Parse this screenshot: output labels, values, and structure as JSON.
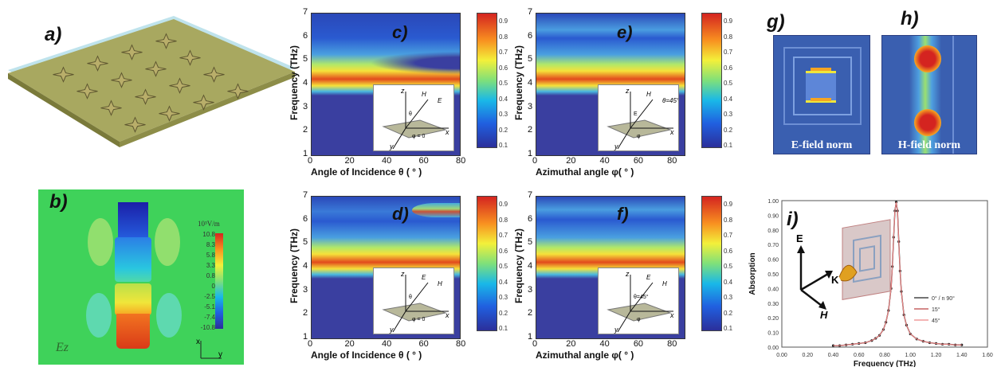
{
  "panels": {
    "a": {
      "label": "a)"
    },
    "b": {
      "label": "b)",
      "unit": "10³V/m",
      "scale": [
        "10.8",
        "8.3",
        "5.8",
        "3.3",
        "0.8",
        "0",
        "-2.5",
        "-5.1",
        "-7.4",
        "-10.8"
      ],
      "field_label": "Ez",
      "axes": [
        "x",
        "y"
      ]
    },
    "c": {
      "label": "c)",
      "xlabel": "Angle of Incidence θ ( ° )",
      "ylabel": "Frequency (THz)",
      "xticks": [
        "0",
        "20",
        "40",
        "60",
        "80"
      ],
      "yticks": [
        "1",
        "2",
        "3",
        "4",
        "5",
        "6",
        "7"
      ],
      "inset_labels": [
        "z",
        "H",
        "E",
        "θ",
        "φ = 0",
        "x",
        "y"
      ]
    },
    "d": {
      "label": "d)",
      "xlabel": "Angle of Incidence θ ( ° )",
      "ylabel": "Frequency (THz)",
      "xticks": [
        "0",
        "20",
        "40",
        "60",
        "80"
      ],
      "yticks": [
        "1",
        "2",
        "3",
        "4",
        "5",
        "6",
        "7"
      ],
      "inset_labels": [
        "z",
        "E",
        "H",
        "θ",
        "φ = 0",
        "x",
        "y"
      ]
    },
    "e": {
      "label": "e)",
      "xlabel": "Azimuthal angle φ( ° )",
      "ylabel": "Frequency (THz)",
      "xticks": [
        "0",
        "20",
        "40",
        "60",
        "80"
      ],
      "yticks": [
        "1",
        "2",
        "3",
        "4",
        "5",
        "6",
        "7"
      ],
      "inset_labels": [
        "z",
        "H",
        "θ=45°",
        "E",
        "φ",
        "x",
        "y"
      ]
    },
    "f": {
      "label": "f)",
      "xlabel": "Azimuthal angle φ( ° )",
      "ylabel": "Frequency (THz)",
      "xticks": [
        "0",
        "20",
        "40",
        "60",
        "80"
      ],
      "yticks": [
        "1",
        "2",
        "3",
        "4",
        "5",
        "6",
        "7"
      ],
      "inset_labels": [
        "z",
        "E",
        "H",
        "θ=45°",
        "φ",
        "x",
        "y"
      ]
    },
    "g": {
      "label": "g)",
      "caption": "E-field norm"
    },
    "h": {
      "label": "h)",
      "caption": "H-field norm"
    },
    "i": {
      "label": "i)",
      "xlabel": "Frequency (THz)",
      "ylabel": "Absorption",
      "legend": [
        "0° / n 90°",
        "15°",
        "45°"
      ],
      "vectors": [
        "E",
        "K",
        "H"
      ]
    }
  },
  "colorbar_ticks": [
    "0.9",
    "0.8",
    "0.7",
    "0.6",
    "0.5",
    "0.4",
    "0.3",
    "0.2",
    "0.1"
  ],
  "chart_data": [
    {
      "type": "line",
      "xlabel": "Frequency (THz)",
      "ylabel": "Absorption",
      "xlim": [
        0.0,
        1.6
      ],
      "ylim": [
        0.0,
        1.0
      ],
      "xticks": [
        "0.00",
        "0.20",
        "0.40",
        "0.60",
        "0.80",
        "1.00",
        "1.20",
        "1.40",
        "1.60"
      ],
      "yticks": [
        "0.00",
        "0.10",
        "0.20",
        "0.30",
        "0.40",
        "0.50",
        "0.60",
        "0.70",
        "0.80",
        "0.90",
        "1.00"
      ],
      "x": [
        0.4,
        0.45,
        0.5,
        0.55,
        0.6,
        0.65,
        0.7,
        0.73,
        0.76,
        0.79,
        0.81,
        0.83,
        0.85,
        0.86,
        0.87,
        0.88,
        0.89,
        0.9,
        0.91,
        0.92,
        0.93,
        0.95,
        0.97,
        1.0,
        1.05,
        1.1,
        1.15,
        1.2,
        1.25,
        1.3,
        1.35,
        1.4
      ],
      "series": [
        {
          "name": "0° / n 90°",
          "values": [
            0.01,
            0.01,
            0.015,
            0.02,
            0.025,
            0.03,
            0.045,
            0.06,
            0.08,
            0.12,
            0.17,
            0.25,
            0.4,
            0.55,
            0.75,
            0.93,
            0.99,
            0.93,
            0.72,
            0.52,
            0.38,
            0.22,
            0.15,
            0.09,
            0.055,
            0.04,
            0.03,
            0.025,
            0.02,
            0.02,
            0.015,
            0.015
          ]
        },
        {
          "name": "15°",
          "values": [
            0.01,
            0.01,
            0.015,
            0.02,
            0.025,
            0.03,
            0.045,
            0.06,
            0.08,
            0.12,
            0.17,
            0.25,
            0.4,
            0.55,
            0.75,
            0.93,
            0.99,
            0.93,
            0.72,
            0.52,
            0.38,
            0.22,
            0.15,
            0.09,
            0.055,
            0.04,
            0.03,
            0.025,
            0.02,
            0.02,
            0.015,
            0.015
          ]
        },
        {
          "name": "45°",
          "values": [
            0.01,
            0.01,
            0.015,
            0.02,
            0.025,
            0.03,
            0.045,
            0.06,
            0.08,
            0.12,
            0.17,
            0.25,
            0.4,
            0.55,
            0.75,
            0.93,
            0.99,
            0.93,
            0.72,
            0.52,
            0.38,
            0.22,
            0.15,
            0.09,
            0.055,
            0.04,
            0.03,
            0.025,
            0.02,
            0.02,
            0.015,
            0.015
          ]
        }
      ]
    },
    {
      "type": "heatmap",
      "xlabel": "Angle of Incidence θ ( ° )",
      "ylabel": "Frequency (THz)",
      "xlim": [
        0,
        80
      ],
      "ylim": [
        1,
        7
      ],
      "clim": [
        0,
        1
      ],
      "note_values": {
        "resonance_THz": 5.2
      }
    }
  ]
}
